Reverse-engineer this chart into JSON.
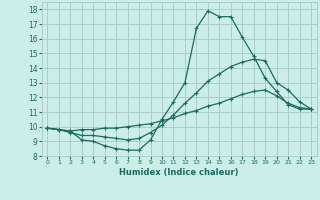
{
  "title": "",
  "xlabel": "Humidex (Indice chaleur)",
  "bg_color": "#cceee8",
  "grid_color": "#aacccc",
  "line_color": "#1a6b60",
  "xlim": [
    -0.5,
    23.5
  ],
  "ylim": [
    8,
    18.5
  ],
  "xticks": [
    0,
    1,
    2,
    3,
    4,
    5,
    6,
    7,
    8,
    9,
    10,
    11,
    12,
    13,
    14,
    15,
    16,
    17,
    18,
    19,
    20,
    21,
    22,
    23
  ],
  "yticks": [
    8,
    9,
    10,
    11,
    12,
    13,
    14,
    15,
    16,
    17,
    18
  ],
  "line1_x": [
    0,
    1,
    2,
    3,
    4,
    5,
    6,
    7,
    8,
    9,
    10,
    11,
    12,
    13,
    14,
    15,
    16,
    17,
    18,
    19,
    20,
    21,
    22,
    23
  ],
  "line1_y": [
    9.9,
    9.8,
    9.7,
    9.1,
    9.0,
    8.7,
    8.5,
    8.4,
    8.4,
    9.1,
    10.5,
    11.7,
    13.0,
    16.7,
    17.9,
    17.5,
    17.5,
    16.1,
    14.8,
    13.3,
    12.4,
    11.5,
    11.2,
    11.2
  ],
  "line2_x": [
    0,
    1,
    2,
    3,
    4,
    5,
    6,
    7,
    8,
    9,
    10,
    11,
    12,
    13,
    14,
    15,
    16,
    17,
    18,
    19,
    20,
    21,
    22,
    23
  ],
  "line2_y": [
    9.9,
    9.8,
    9.6,
    9.4,
    9.4,
    9.3,
    9.2,
    9.1,
    9.2,
    9.6,
    10.1,
    10.8,
    11.6,
    12.3,
    13.1,
    13.6,
    14.1,
    14.4,
    14.6,
    14.5,
    13.0,
    12.5,
    11.7,
    11.2
  ],
  "line3_x": [
    0,
    1,
    2,
    3,
    4,
    5,
    6,
    7,
    8,
    9,
    10,
    11,
    12,
    13,
    14,
    15,
    16,
    17,
    18,
    19,
    20,
    21,
    22,
    23
  ],
  "line3_y": [
    9.9,
    9.8,
    9.7,
    9.8,
    9.8,
    9.9,
    9.9,
    10.0,
    10.1,
    10.2,
    10.4,
    10.6,
    10.9,
    11.1,
    11.4,
    11.6,
    11.9,
    12.2,
    12.4,
    12.5,
    12.1,
    11.6,
    11.3,
    11.2
  ]
}
